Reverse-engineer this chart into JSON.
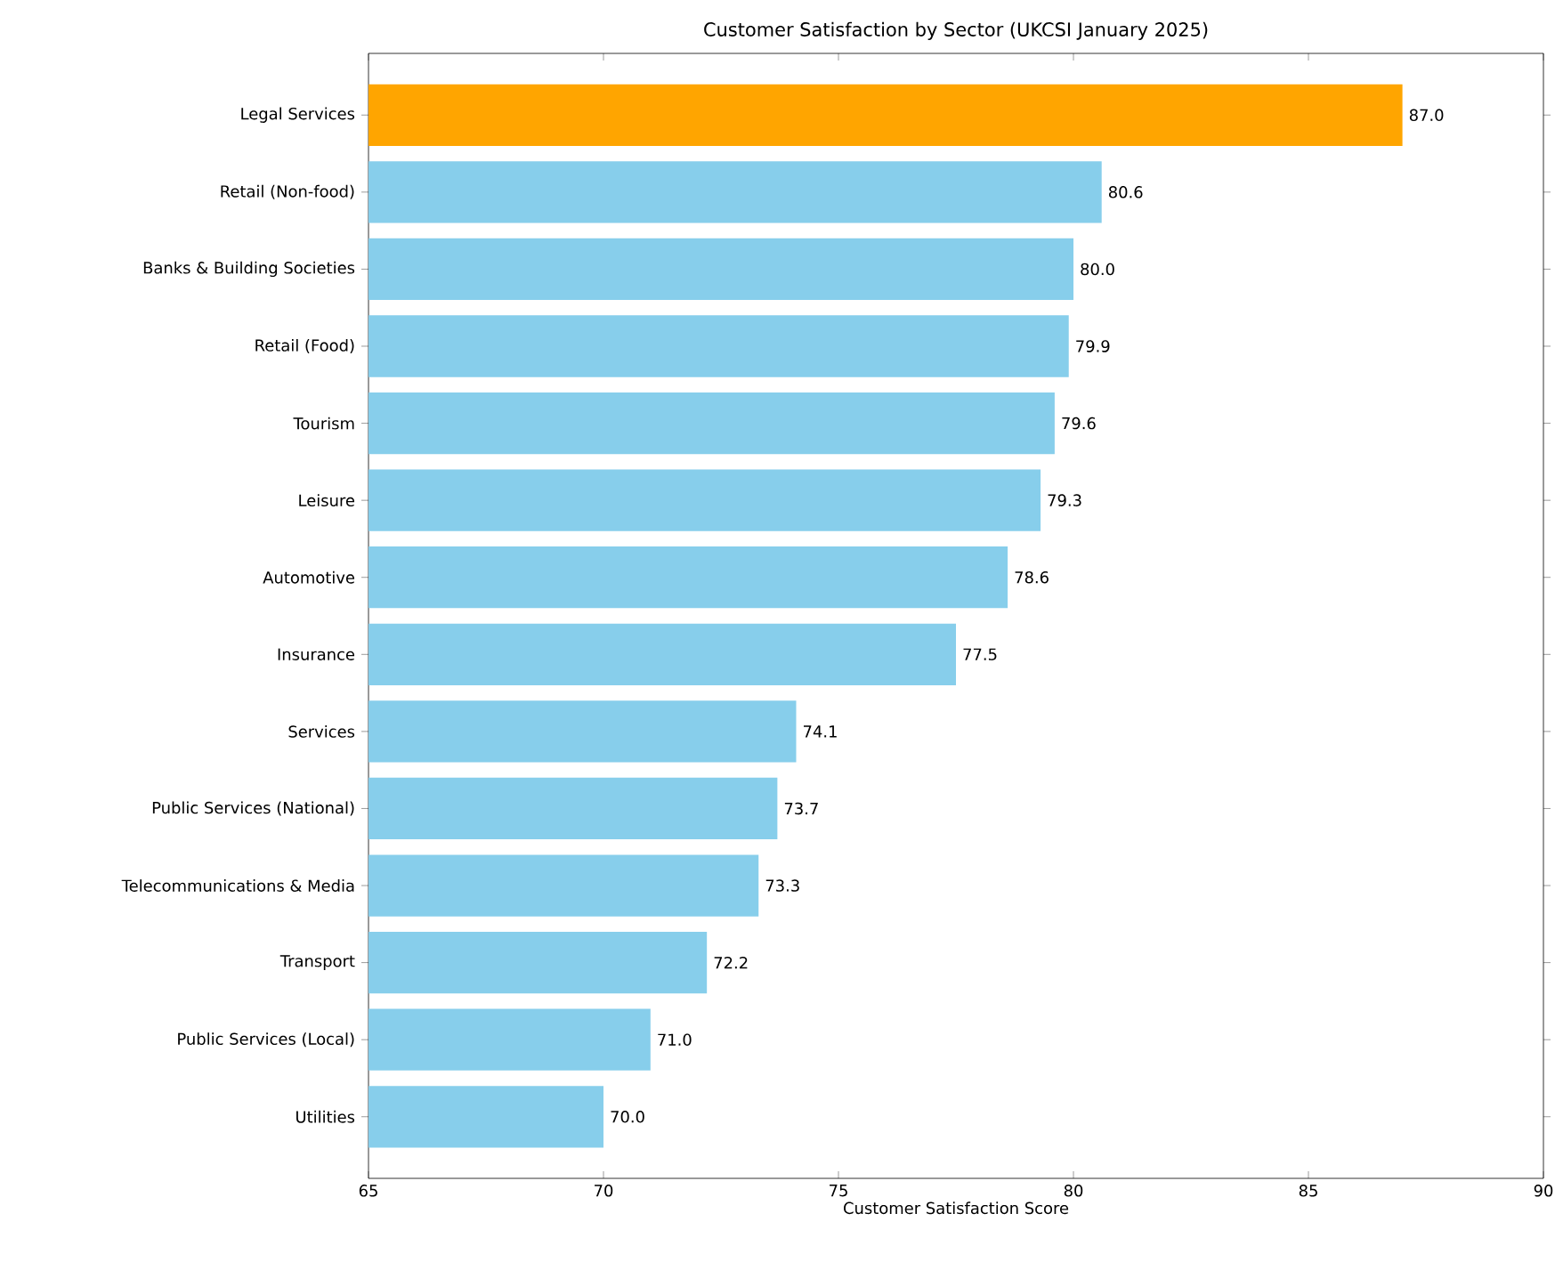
{
  "chart_data": {
    "type": "bar",
    "orientation": "horizontal",
    "title": "Customer Satisfaction by Sector (UKCSI January 2025)",
    "xlabel": "Customer Satisfaction Score",
    "categories": [
      "Legal Services",
      "Retail (Non-food)",
      "Banks & Building Societies",
      "Retail (Food)",
      "Tourism",
      "Leisure",
      "Automotive",
      "Insurance",
      "Services",
      "Public Services (National)",
      "Telecommunications & Media",
      "Transport",
      "Public Services (Local)",
      "Utilities"
    ],
    "values": [
      87.0,
      80.6,
      80.0,
      79.9,
      79.6,
      79.3,
      78.6,
      77.5,
      74.1,
      73.7,
      73.3,
      72.2,
      71.0,
      70.0
    ],
    "colors": [
      "#ffa500",
      "#87ceeb",
      "#87ceeb",
      "#87ceeb",
      "#87ceeb",
      "#87ceeb",
      "#87ceeb",
      "#87ceeb",
      "#87ceeb",
      "#87ceeb",
      "#87ceeb",
      "#87ceeb",
      "#87ceeb",
      "#87ceeb"
    ],
    "value_labels": [
      "87.0",
      "80.6",
      "80.0",
      "79.9",
      "79.6",
      "79.3",
      "78.6",
      "77.5",
      "74.1",
      "73.7",
      "73.3",
      "72.2",
      "71.0",
      "70.0"
    ],
    "xlim": [
      65,
      90
    ],
    "xticks": [
      65,
      70,
      75,
      80,
      85,
      90
    ],
    "grid": false
  }
}
